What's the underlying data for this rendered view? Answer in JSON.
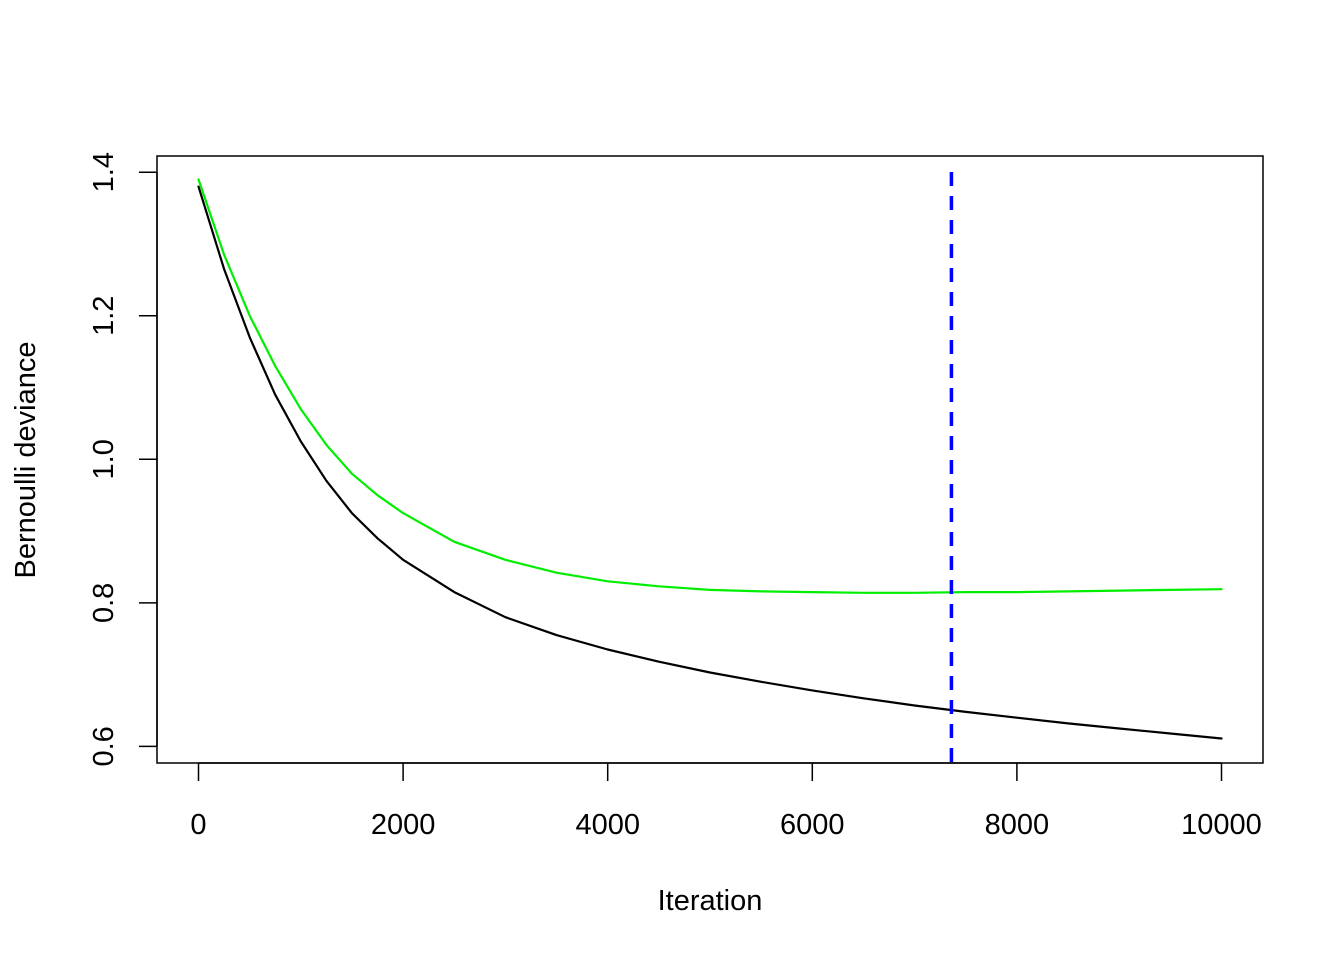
{
  "chart_data": {
    "type": "line",
    "title": "",
    "xlabel": "Iteration",
    "ylabel": "Bernoulli deviance",
    "xlim": [
      0,
      10000
    ],
    "ylim": [
      0.6,
      1.4
    ],
    "x_ticks": [
      0,
      2000,
      4000,
      6000,
      8000,
      10000
    ],
    "y_ticks": [
      0.6,
      0.8,
      1.0,
      1.2,
      1.4
    ],
    "x_tick_labels": [
      "0",
      "2000",
      "4000",
      "6000",
      "8000",
      "10000"
    ],
    "y_tick_labels": [
      "0.6",
      "0.8",
      "1.0",
      "1.2",
      "1.4"
    ],
    "grid": false,
    "legend": "none",
    "series": [
      {
        "color": "#000000",
        "x": [
          0,
          250,
          500,
          750,
          1000,
          1250,
          1500,
          1750,
          2000,
          2500,
          3000,
          3500,
          4000,
          4500,
          5000,
          5500,
          6000,
          6500,
          7000,
          7500,
          8000,
          8500,
          9000,
          9500,
          10000
        ],
        "y": [
          1.38,
          1.265,
          1.17,
          1.09,
          1.025,
          0.97,
          0.925,
          0.89,
          0.86,
          0.815,
          0.78,
          0.755,
          0.735,
          0.718,
          0.703,
          0.69,
          0.678,
          0.667,
          0.657,
          0.648,
          0.64,
          0.632,
          0.625,
          0.618,
          0.611
        ]
      },
      {
        "color": "#00ee00",
        "x": [
          0,
          250,
          500,
          750,
          1000,
          1250,
          1500,
          1750,
          2000,
          2500,
          3000,
          3500,
          4000,
          4500,
          5000,
          5500,
          6000,
          6500,
          7000,
          7500,
          8000,
          8500,
          9000,
          9500,
          10000
        ],
        "y": [
          1.39,
          1.285,
          1.2,
          1.13,
          1.07,
          1.02,
          0.98,
          0.95,
          0.925,
          0.885,
          0.86,
          0.842,
          0.83,
          0.823,
          0.818,
          0.816,
          0.815,
          0.814,
          0.814,
          0.815,
          0.815,
          0.816,
          0.817,
          0.818,
          0.819
        ]
      }
    ],
    "vlines": [
      {
        "x": 7360,
        "color": "#0000ff",
        "style": "dashed"
      }
    ]
  }
}
